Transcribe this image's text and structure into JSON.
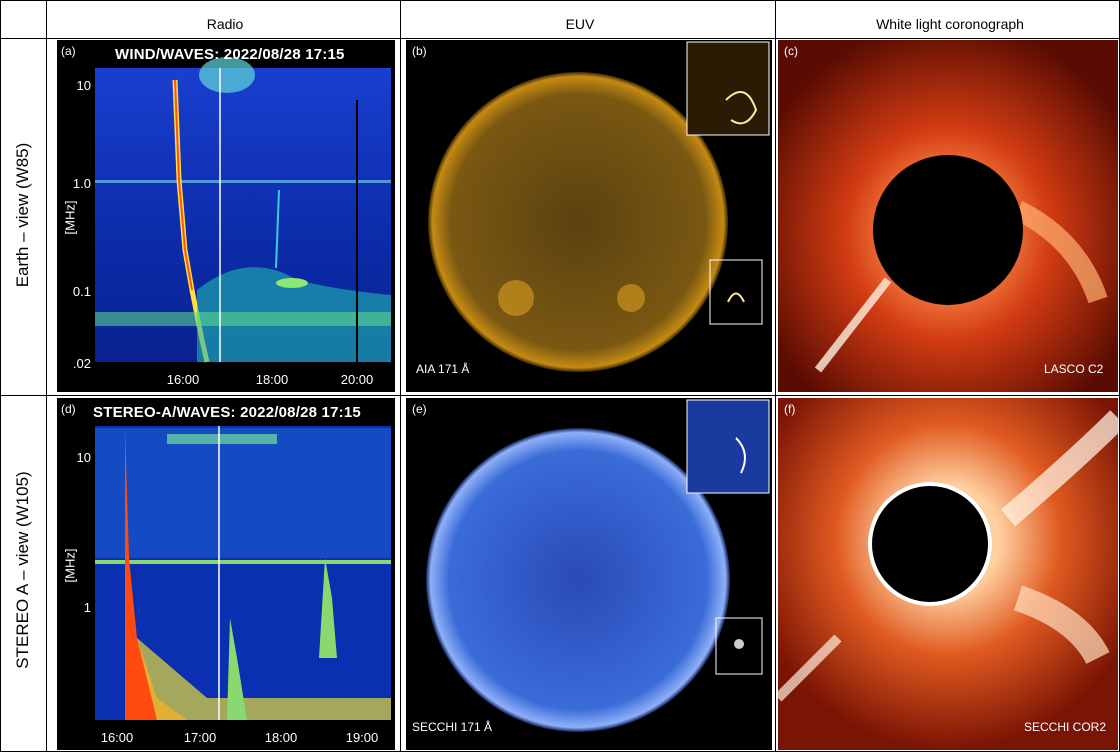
{
  "columns": {
    "radio": "Radio",
    "euv": "EUV",
    "wl": "White light coronograph"
  },
  "rows": {
    "earth": "Earth – view (W85)",
    "stereo": "STEREO A – view (W105)"
  },
  "panels": {
    "a": {
      "tag": "(a)",
      "title": "WIND/WAVES: 2022/08/28 17:15",
      "unit": "[MHz]",
      "yticks": [
        "10",
        "1.0",
        "0.1",
        ".02"
      ],
      "xticks": [
        "16:00",
        "18:00",
        "20:00"
      ]
    },
    "b": {
      "tag": "(b)",
      "instrument": "AIA 171 Å"
    },
    "c": {
      "tag": "(c)",
      "instrument": "LASCO C2"
    },
    "d": {
      "tag": "(d)",
      "title": "STEREO-A/WAVES: 2022/08/28 17:15",
      "unit": "[MHz]",
      "yticks": [
        "10",
        "1"
      ],
      "xticks": [
        "16:00",
        "17:00",
        "18:00",
        "19:00"
      ]
    },
    "e": {
      "tag": "(e)",
      "instrument": "SECCHI 171 Å"
    },
    "f": {
      "tag": "(f)",
      "instrument": "SECCHI COR2"
    }
  },
  "colors": {
    "euv_aia": "#c58a12",
    "euv_secchi": "#3a6cd8",
    "coronagraph": "#d23c12",
    "spectrum_bg": "#0a2fb0"
  }
}
